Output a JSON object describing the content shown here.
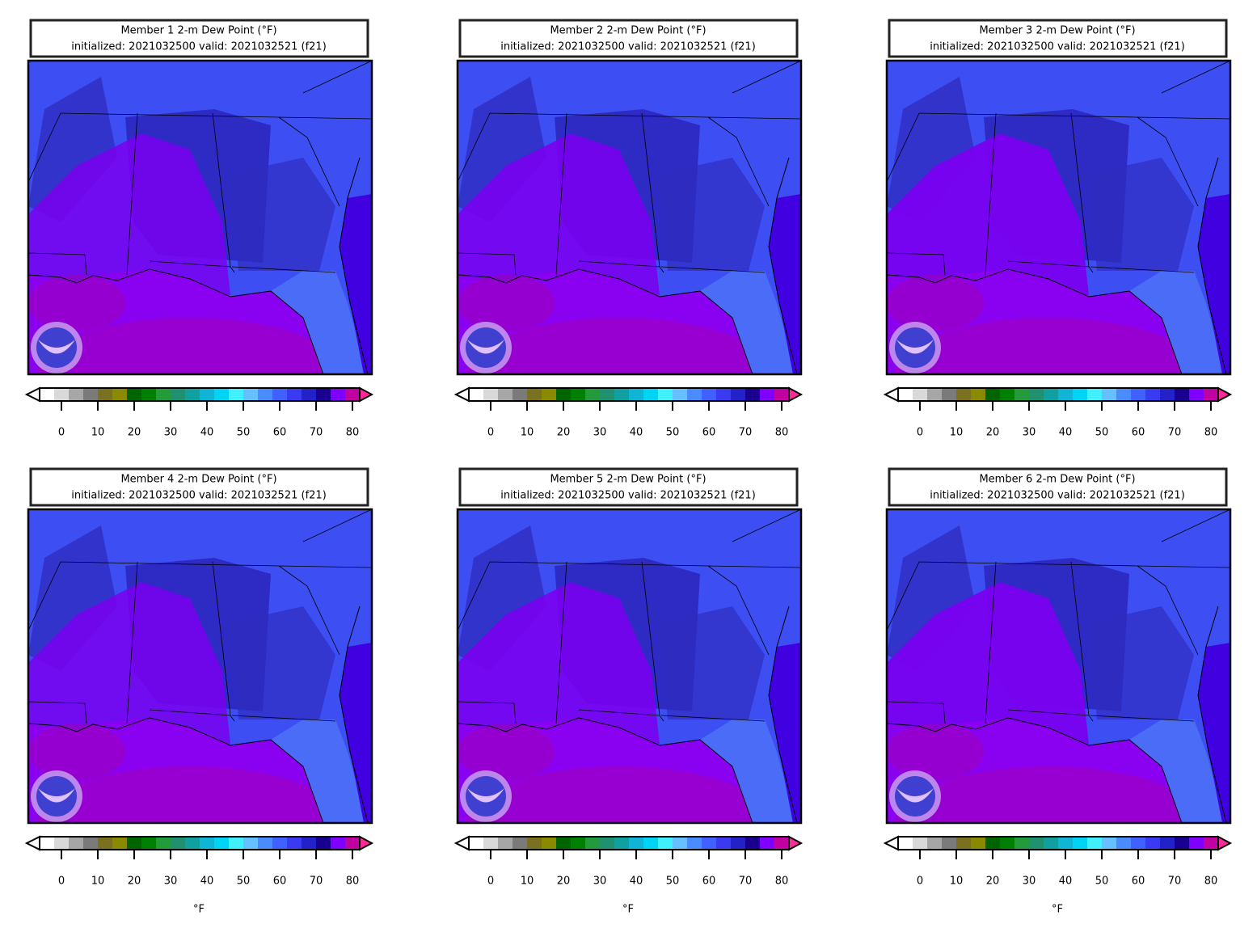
{
  "figure": {
    "colormap": [
      "#ffffff",
      "#d9d9d9",
      "#a6a6a6",
      "#7a7a7a",
      "#7a7020",
      "#8a8a00",
      "#006400",
      "#008000",
      "#239b3a",
      "#1f9170",
      "#10a0a0",
      "#10b4d4",
      "#00d4f4",
      "#40f0ff",
      "#66bfff",
      "#4a8cff",
      "#4060ff",
      "#3a3af0",
      "#2222c8",
      "#1a0090",
      "#8000ff",
      "#c000a0"
    ],
    "under_color": "#ffffff",
    "over_color": "#ff2a9a",
    "panels": [
      {
        "title": "Member 1 2-m Dew Point (°F)",
        "subtitle": "initialized: 2021032500 valid: 2021032521 (f21)",
        "colorbar": {
          "range": [
            -6,
            82
          ],
          "ticks": [
            0,
            10,
            20,
            30,
            40,
            50,
            60,
            70,
            80
          ]
        }
      },
      {
        "title": "Member 2 2-m Dew Point (°F)",
        "subtitle": "initialized: 2021032500 valid: 2021032521 (f21)",
        "colorbar": {
          "range": [
            -6,
            82
          ],
          "ticks": [
            0,
            10,
            20,
            30,
            40,
            50,
            60,
            70,
            80
          ]
        }
      },
      {
        "title": "Member 3 2-m Dew Point (°F)",
        "subtitle": "initialized: 2021032500 valid: 2021032521 (f21)",
        "colorbar": {
          "range": [
            -6,
            82
          ],
          "ticks": [
            0,
            10,
            20,
            30,
            40,
            50,
            60,
            70,
            80
          ]
        }
      },
      {
        "title": "Member 4 2-m Dew Point (°F)",
        "subtitle": "initialized: 2021032500 valid: 2021032521 (f21)",
        "colorbar": {
          "range": [
            -6,
            82
          ],
          "ticks": [
            0,
            10,
            20,
            30,
            40,
            50,
            60,
            70,
            80
          ],
          "label": "°F"
        }
      },
      {
        "title": "Member 5 2-m Dew Point (°F)",
        "subtitle": "initialized: 2021032500 valid: 2021032521 (f21)",
        "colorbar": {
          "range": [
            -6,
            82
          ],
          "ticks": [
            0,
            10,
            20,
            30,
            40,
            50,
            60,
            70,
            80
          ],
          "label": "°F"
        }
      },
      {
        "title": "Member 6 2-m Dew Point (°F)",
        "subtitle": "initialized: 2021032500 valid: 2021032521 (f21)",
        "colorbar": {
          "range": [
            -6,
            82
          ],
          "ticks": [
            0,
            10,
            20,
            30,
            40,
            50,
            60,
            70,
            80
          ],
          "label": "°F"
        }
      }
    ]
  }
}
